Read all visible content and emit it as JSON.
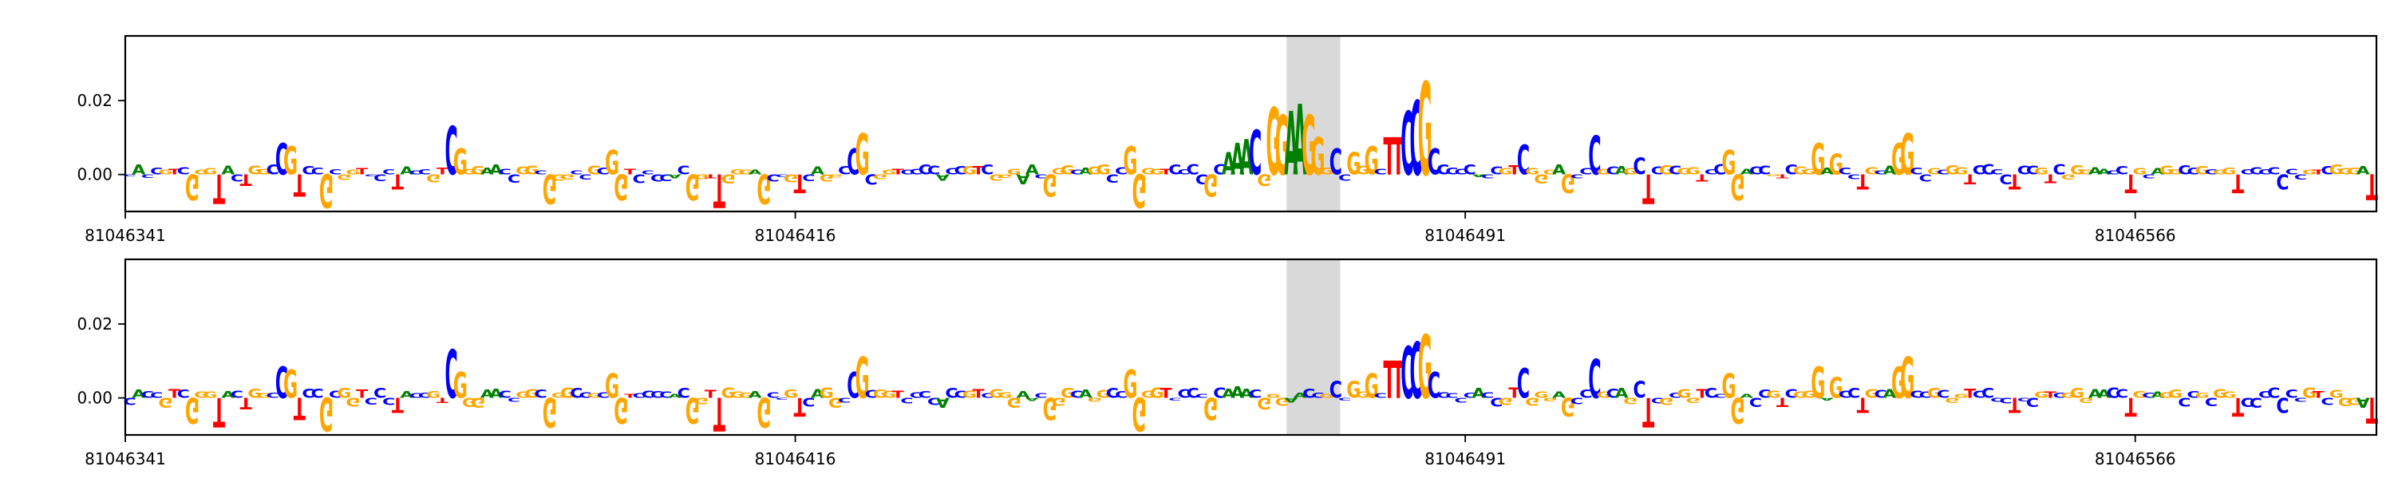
{
  "chart_data": [
    {
      "type": "sequence-logo",
      "title": "",
      "panel": "top",
      "ylim": [
        -0.01,
        0.0375
      ],
      "yticks": [
        "0.02",
        "0.00"
      ],
      "ytick_values": [
        0.02,
        0.0
      ],
      "x_range": [
        81046341,
        81046592
      ],
      "xticks": [
        "81046341",
        "81046416",
        "81046491",
        "81046566"
      ],
      "xtick_values": [
        81046341,
        81046416,
        81046491,
        81046566
      ],
      "highlight": [
        81046471,
        81046476
      ],
      "pos_letters": [
        "C",
        "A",
        "C",
        "C",
        "G",
        "T",
        "C",
        "G",
        "G",
        "G",
        "A",
        "A",
        "C",
        "C",
        "G",
        "G",
        "C",
        "A",
        "G",
        "G",
        "C",
        "C",
        "G",
        "C",
        "G",
        "G",
        "T",
        "C",
        "C",
        "C"
      ],
      "peaks": [
        {
          "x": 81046358,
          "h": 0.0085,
          "l": "C"
        },
        {
          "x": 81046359,
          "h": 0.0075,
          "l": "G"
        },
        {
          "x": 81046377,
          "h": 0.013,
          "l": "C"
        },
        {
          "x": 81046378,
          "h": 0.007,
          "l": "G"
        },
        {
          "x": 81046395,
          "h": 0.0065,
          "l": "G"
        },
        {
          "x": 81046422,
          "h": 0.007,
          "l": "C"
        },
        {
          "x": 81046423,
          "h": 0.011,
          "l": "G"
        },
        {
          "x": 81046453,
          "h": 0.0075,
          "l": "G"
        },
        {
          "x": 81046464,
          "h": 0.006,
          "l": "A"
        },
        {
          "x": 81046465,
          "h": 0.0085,
          "l": "A"
        },
        {
          "x": 81046466,
          "h": 0.0095,
          "l": "A"
        },
        {
          "x": 81046467,
          "h": 0.012,
          "l": "C"
        },
        {
          "x": 81046469,
          "h": 0.018,
          "l": "G"
        },
        {
          "x": 81046470,
          "h": 0.016,
          "l": "G"
        },
        {
          "x": 81046471,
          "h": 0.017,
          "l": "A"
        },
        {
          "x": 81046472,
          "h": 0.019,
          "l": "A"
        },
        {
          "x": 81046473,
          "h": 0.016,
          "l": "G"
        },
        {
          "x": 81046474,
          "h": 0.01,
          "l": "G"
        },
        {
          "x": 81046476,
          "h": 0.007,
          "l": "C"
        },
        {
          "x": 81046478,
          "h": 0.006,
          "l": "G"
        },
        {
          "x": 81046480,
          "h": 0.0075,
          "l": "G"
        },
        {
          "x": 81046482,
          "h": 0.01,
          "l": "T"
        },
        {
          "x": 81046483,
          "h": 0.01,
          "l": "T"
        },
        {
          "x": 81046484,
          "h": 0.017,
          "l": "C"
        },
        {
          "x": 81046485,
          "h": 0.02,
          "l": "C"
        },
        {
          "x": 81046486,
          "h": 0.025,
          "l": "G"
        },
        {
          "x": 81046487,
          "h": 0.007,
          "l": "C"
        },
        {
          "x": 81046497,
          "h": 0.008,
          "l": "C"
        },
        {
          "x": 81046505,
          "h": 0.0105,
          "l": "C"
        },
        {
          "x": 81046510,
          "h": 0.0045,
          "l": "C"
        },
        {
          "x": 81046520,
          "h": 0.0065,
          "l": "G"
        },
        {
          "x": 81046530,
          "h": 0.0085,
          "l": "G"
        },
        {
          "x": 81046532,
          "h": 0.0055,
          "l": "G"
        },
        {
          "x": 81046539,
          "h": 0.0085,
          "l": "G"
        },
        {
          "x": 81046540,
          "h": 0.011,
          "l": "G"
        }
      ],
      "troughs": [
        {
          "x": 81046348,
          "d": 0.007,
          "l": "G"
        },
        {
          "x": 81046351,
          "d": 0.008,
          "l": "T"
        },
        {
          "x": 81046354,
          "d": 0.003,
          "l": "T"
        },
        {
          "x": 81046360,
          "d": 0.006,
          "l": "T"
        },
        {
          "x": 81046363,
          "d": 0.009,
          "l": "G"
        },
        {
          "x": 81046371,
          "d": 0.004,
          "l": "T"
        },
        {
          "x": 81046388,
          "d": 0.008,
          "l": "G"
        },
        {
          "x": 81046396,
          "d": 0.007,
          "l": "G"
        },
        {
          "x": 81046404,
          "d": 0.007,
          "l": "G"
        },
        {
          "x": 81046407,
          "d": 0.009,
          "l": "T"
        },
        {
          "x": 81046412,
          "d": 0.008,
          "l": "G"
        },
        {
          "x": 81046416,
          "d": 0.005,
          "l": "T"
        },
        {
          "x": 81046423,
          "d": 0.006,
          "l": "T"
        },
        {
          "x": 81046444,
          "d": 0.006,
          "l": "G"
        },
        {
          "x": 81046454,
          "d": 0.009,
          "l": "G"
        },
        {
          "x": 81046462,
          "d": 0.006,
          "l": "G"
        },
        {
          "x": 81046468,
          "d": 0.003,
          "l": "G"
        },
        {
          "x": 81046502,
          "d": 0.005,
          "l": "G"
        },
        {
          "x": 81046511,
          "d": 0.008,
          "l": "T"
        },
        {
          "x": 81046521,
          "d": 0.007,
          "l": "G"
        },
        {
          "x": 81046530,
          "d": 0.006,
          "l": "T"
        },
        {
          "x": 81046535,
          "d": 0.004,
          "l": "T"
        },
        {
          "x": 81046552,
          "d": 0.004,
          "l": "T"
        },
        {
          "x": 81046565,
          "d": 0.005,
          "l": "T"
        },
        {
          "x": 81046577,
          "d": 0.005,
          "l": "T"
        },
        {
          "x": 81046582,
          "d": 0.004,
          "l": "C"
        },
        {
          "x": 81046592,
          "d": 0.007,
          "l": "T"
        }
      ]
    },
    {
      "type": "sequence-logo",
      "title": "",
      "panel": "bottom",
      "ylim": [
        -0.01,
        0.0375
      ],
      "yticks": [
        "0.02",
        "0.00"
      ],
      "ytick_values": [
        0.02,
        0.0
      ],
      "x_range": [
        81046341,
        81046592
      ],
      "xticks": [
        "81046341",
        "81046416",
        "81046491",
        "81046566"
      ],
      "xtick_values": [
        81046341,
        81046416,
        81046491,
        81046566
      ],
      "highlight": [
        81046471,
        81046476
      ],
      "pos_letters": [
        "C",
        "A",
        "C",
        "C",
        "G",
        "T",
        "C",
        "G",
        "G",
        "G",
        "A",
        "A",
        "C",
        "C",
        "G",
        "G",
        "C",
        "A",
        "G",
        "G",
        "C",
        "C",
        "G",
        "C",
        "G",
        "G",
        "T",
        "C",
        "C",
        "C"
      ],
      "peaks": [
        {
          "x": 81046358,
          "h": 0.0085,
          "l": "C"
        },
        {
          "x": 81046359,
          "h": 0.0075,
          "l": "G"
        },
        {
          "x": 81046377,
          "h": 0.013,
          "l": "C"
        },
        {
          "x": 81046378,
          "h": 0.007,
          "l": "G"
        },
        {
          "x": 81046395,
          "h": 0.0065,
          "l": "G"
        },
        {
          "x": 81046422,
          "h": 0.007,
          "l": "C"
        },
        {
          "x": 81046423,
          "h": 0.011,
          "l": "G"
        },
        {
          "x": 81046453,
          "h": 0.0075,
          "l": "G"
        },
        {
          "x": 81046464,
          "h": 0.0025,
          "l": "A"
        },
        {
          "x": 81046465,
          "h": 0.003,
          "l": "A"
        },
        {
          "x": 81046466,
          "h": 0.0025,
          "l": "A"
        },
        {
          "x": 81046476,
          "h": 0.0045,
          "l": "C"
        },
        {
          "x": 81046478,
          "h": 0.0045,
          "l": "G"
        },
        {
          "x": 81046480,
          "h": 0.0065,
          "l": "G"
        },
        {
          "x": 81046482,
          "h": 0.01,
          "l": "T"
        },
        {
          "x": 81046483,
          "h": 0.01,
          "l": "T"
        },
        {
          "x": 81046484,
          "h": 0.014,
          "l": "C"
        },
        {
          "x": 81046485,
          "h": 0.015,
          "l": "C"
        },
        {
          "x": 81046486,
          "h": 0.017,
          "l": "G"
        },
        {
          "x": 81046487,
          "h": 0.007,
          "l": "C"
        },
        {
          "x": 81046497,
          "h": 0.008,
          "l": "C"
        },
        {
          "x": 81046505,
          "h": 0.0105,
          "l": "C"
        },
        {
          "x": 81046510,
          "h": 0.0045,
          "l": "C"
        },
        {
          "x": 81046520,
          "h": 0.0065,
          "l": "G"
        },
        {
          "x": 81046530,
          "h": 0.0085,
          "l": "G"
        },
        {
          "x": 81046532,
          "h": 0.0055,
          "l": "G"
        },
        {
          "x": 81046539,
          "h": 0.0085,
          "l": "G"
        },
        {
          "x": 81046540,
          "h": 0.011,
          "l": "G"
        }
      ],
      "troughs": [
        {
          "x": 81046348,
          "d": 0.007,
          "l": "G"
        },
        {
          "x": 81046351,
          "d": 0.008,
          "l": "T"
        },
        {
          "x": 81046354,
          "d": 0.003,
          "l": "T"
        },
        {
          "x": 81046360,
          "d": 0.006,
          "l": "T"
        },
        {
          "x": 81046363,
          "d": 0.009,
          "l": "G"
        },
        {
          "x": 81046371,
          "d": 0.004,
          "l": "T"
        },
        {
          "x": 81046388,
          "d": 0.008,
          "l": "G"
        },
        {
          "x": 81046396,
          "d": 0.007,
          "l": "G"
        },
        {
          "x": 81046404,
          "d": 0.007,
          "l": "G"
        },
        {
          "x": 81046407,
          "d": 0.009,
          "l": "T"
        },
        {
          "x": 81046412,
          "d": 0.008,
          "l": "G"
        },
        {
          "x": 81046416,
          "d": 0.005,
          "l": "T"
        },
        {
          "x": 81046423,
          "d": 0.006,
          "l": "T"
        },
        {
          "x": 81046444,
          "d": 0.006,
          "l": "G"
        },
        {
          "x": 81046454,
          "d": 0.009,
          "l": "G"
        },
        {
          "x": 81046462,
          "d": 0.006,
          "l": "G"
        },
        {
          "x": 81046468,
          "d": 0.003,
          "l": "G"
        },
        {
          "x": 81046502,
          "d": 0.005,
          "l": "G"
        },
        {
          "x": 81046511,
          "d": 0.008,
          "l": "T"
        },
        {
          "x": 81046521,
          "d": 0.007,
          "l": "G"
        },
        {
          "x": 81046530,
          "d": 0.006,
          "l": "T"
        },
        {
          "x": 81046535,
          "d": 0.004,
          "l": "T"
        },
        {
          "x": 81046552,
          "d": 0.004,
          "l": "T"
        },
        {
          "x": 81046565,
          "d": 0.005,
          "l": "T"
        },
        {
          "x": 81046577,
          "d": 0.005,
          "l": "T"
        },
        {
          "x": 81046582,
          "d": 0.004,
          "l": "C"
        },
        {
          "x": 81046592,
          "d": 0.007,
          "l": "T"
        }
      ]
    }
  ],
  "colors": {
    "A": "#008000",
    "C": "#0000ff",
    "G": "#ffa500",
    "T": "#ff0000",
    "axis": "#000000",
    "highlight": "#d9d9d9"
  }
}
